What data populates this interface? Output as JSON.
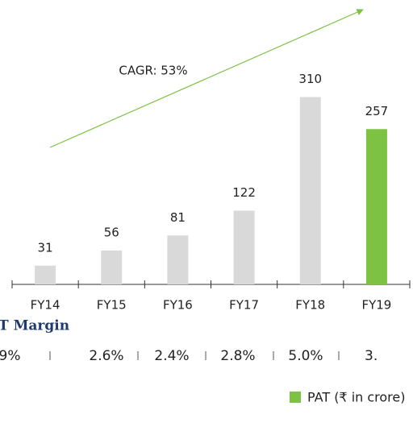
{
  "chart_data": {
    "type": "bar",
    "categories": [
      "FY14",
      "FY15",
      "FY16",
      "FY17",
      "FY18",
      "FY19"
    ],
    "values": [
      31,
      56,
      81,
      122,
      310,
      257
    ],
    "colors": [
      "#d9d9d9",
      "#d9d9d9",
      "#d9d9d9",
      "#d9d9d9",
      "#d9d9d9",
      "#7dc242"
    ],
    "ylim": [
      0,
      400
    ],
    "annotation": "CAGR: 53%",
    "annotation_color": "#7dc242",
    "legend": {
      "name": "PAT (₹ in crore)",
      "color": "#7dc242"
    }
  },
  "margin": {
    "title": "T Margin",
    "values": [
      "9%",
      "2.6%",
      "2.4%",
      "2.8%",
      "5.0%",
      "3."
    ]
  }
}
